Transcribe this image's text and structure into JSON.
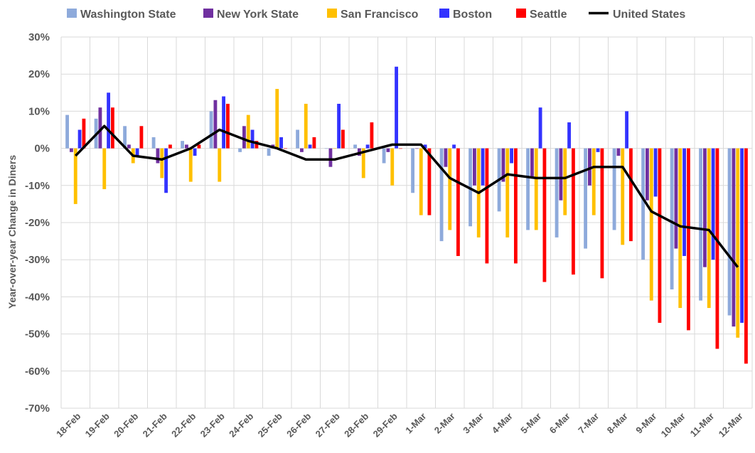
{
  "chart_data": {
    "type": "bar",
    "title": "",
    "xlabel": "",
    "ylabel": "Year-over-year Change in Diners",
    "ylim": [
      -70,
      30
    ],
    "y_ticks": [
      "30%",
      "20%",
      "10%",
      "0%",
      "-10%",
      "-20%",
      "-30%",
      "-40%",
      "-50%",
      "-60%",
      "-70%"
    ],
    "y_tick_values": [
      30,
      20,
      10,
      0,
      -10,
      -20,
      -30,
      -40,
      -50,
      -60,
      -70
    ],
    "grid": true,
    "legend_position": "top",
    "categories": [
      "18-Feb",
      "19-Feb",
      "20-Feb",
      "21-Feb",
      "22-Feb",
      "23-Feb",
      "24-Feb",
      "25-Feb",
      "26-Feb",
      "27-Feb",
      "28-Feb",
      "29-Feb",
      "1-Mar",
      "2-Mar",
      "3-Mar",
      "4-Mar",
      "5-Mar",
      "6-Mar",
      "7-Mar",
      "8-Mar",
      "9-Mar",
      "10-Mar",
      "11-Mar",
      "12-Mar"
    ],
    "series": [
      {
        "name": "Washington State",
        "color": "#8eaadb",
        "type": "bar",
        "values": [
          9,
          8,
          6,
          3,
          2,
          10,
          -1,
          -2,
          5,
          0,
          1,
          -4,
          -12,
          -25,
          -21,
          -17,
          -22,
          -24,
          -27,
          -22,
          -30,
          -38,
          -41,
          -45
        ]
      },
      {
        "name": "New York State",
        "color": "#7030a0",
        "type": "bar",
        "values": [
          -1,
          11,
          1,
          -4,
          1,
          13,
          6,
          1,
          -1,
          -5,
          -2,
          -1,
          0,
          -5,
          -10,
          -9,
          -8,
          -14,
          -10,
          -2,
          -14,
          -27,
          -32,
          -48
        ]
      },
      {
        "name": "San Francisco",
        "color": "#ffc000",
        "type": "bar",
        "values": [
          -15,
          -11,
          -4,
          -8,
          -9,
          -9,
          9,
          16,
          12,
          0,
          -8,
          -10,
          -18,
          -22,
          -24,
          -24,
          -22,
          -18,
          -18,
          -26,
          -41,
          -43,
          -43,
          -51
        ]
      },
      {
        "name": "Boston",
        "color": "#3333ff",
        "type": "bar",
        "values": [
          5,
          15,
          -2,
          -12,
          -2,
          14,
          5,
          3,
          1,
          12,
          1,
          22,
          1,
          1,
          -10,
          -4,
          11,
          7,
          -1,
          10,
          -13,
          -29,
          -30,
          -47
        ]
      },
      {
        "name": "Seattle",
        "color": "#ff0000",
        "type": "bar",
        "values": [
          8,
          11,
          6,
          1,
          1,
          12,
          2,
          0,
          3,
          5,
          7,
          0,
          -18,
          -29,
          -31,
          -31,
          -36,
          -34,
          -35,
          -25,
          -47,
          -49,
          -54,
          -58
        ]
      },
      {
        "name": "United States",
        "color": "#000000",
        "type": "line",
        "values": [
          -2,
          6,
          -2,
          -3,
          0,
          5,
          2,
          0,
          -3,
          -3,
          -1,
          1,
          1,
          -8,
          -12,
          -7,
          -8,
          -8,
          -5,
          -5,
          -17,
          -21,
          -22,
          -32
        ]
      }
    ]
  }
}
